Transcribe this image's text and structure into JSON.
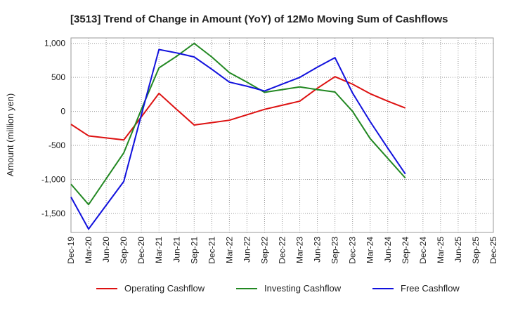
{
  "chart_data": {
    "type": "line",
    "title": "[3513]  Trend of Change in Amount (YoY) of 12Mo Moving Sum of Cashflows",
    "xlabel": "",
    "ylabel": "Amount (million yen)",
    "categories": [
      "Dec-19",
      "Mar-20",
      "Jun-20",
      "Sep-20",
      "Dec-20",
      "Mar-21",
      "Jun-21",
      "Sep-21",
      "Dec-21",
      "Mar-22",
      "Jun-22",
      "Sep-22",
      "Dec-22",
      "Mar-23",
      "Jun-23",
      "Sep-23",
      "Dec-23",
      "Mar-24",
      "Jun-24",
      "Sep-24",
      "Dec-24",
      "Mar-25",
      "Jun-25",
      "Sep-25",
      "Dec-25"
    ],
    "ylim": [
      -1780,
      1080
    ],
    "yticks": [
      1000,
      500,
      0,
      -500,
      -1000,
      -1500
    ],
    "ytick_labels": [
      "1,000",
      "500",
      "0",
      "-500",
      "-1,000",
      "-1,500"
    ],
    "grid": true,
    "legend_position": "bottom",
    "series": [
      {
        "name": "Operating Cashflow",
        "color": "#dd1111",
        "values": [
          -190,
          -360,
          -390,
          -420,
          -80,
          265,
          30,
          -200,
          -165,
          -130,
          -50,
          30,
          90,
          150,
          340,
          510,
          400,
          260,
          150,
          50,
          null,
          null,
          null,
          null,
          null
        ]
      },
      {
        "name": "Investing Cashflow",
        "color": "#228822",
        "values": [
          -1070,
          -1370,
          -990,
          -610,
          30,
          640,
          810,
          1000,
          800,
          570,
          430,
          280,
          320,
          360,
          320,
          285,
          0,
          -400,
          -690,
          -980,
          null,
          null,
          null,
          null,
          null
        ]
      },
      {
        "name": "Free Cashflow",
        "color": "#1111dd",
        "values": [
          -1260,
          -1730,
          -1380,
          -1030,
          -50,
          910,
          860,
          800,
          620,
          430,
          370,
          300,
          400,
          500,
          650,
          790,
          270,
          -150,
          -540,
          -920,
          null,
          null,
          null,
          null,
          null
        ]
      }
    ]
  }
}
